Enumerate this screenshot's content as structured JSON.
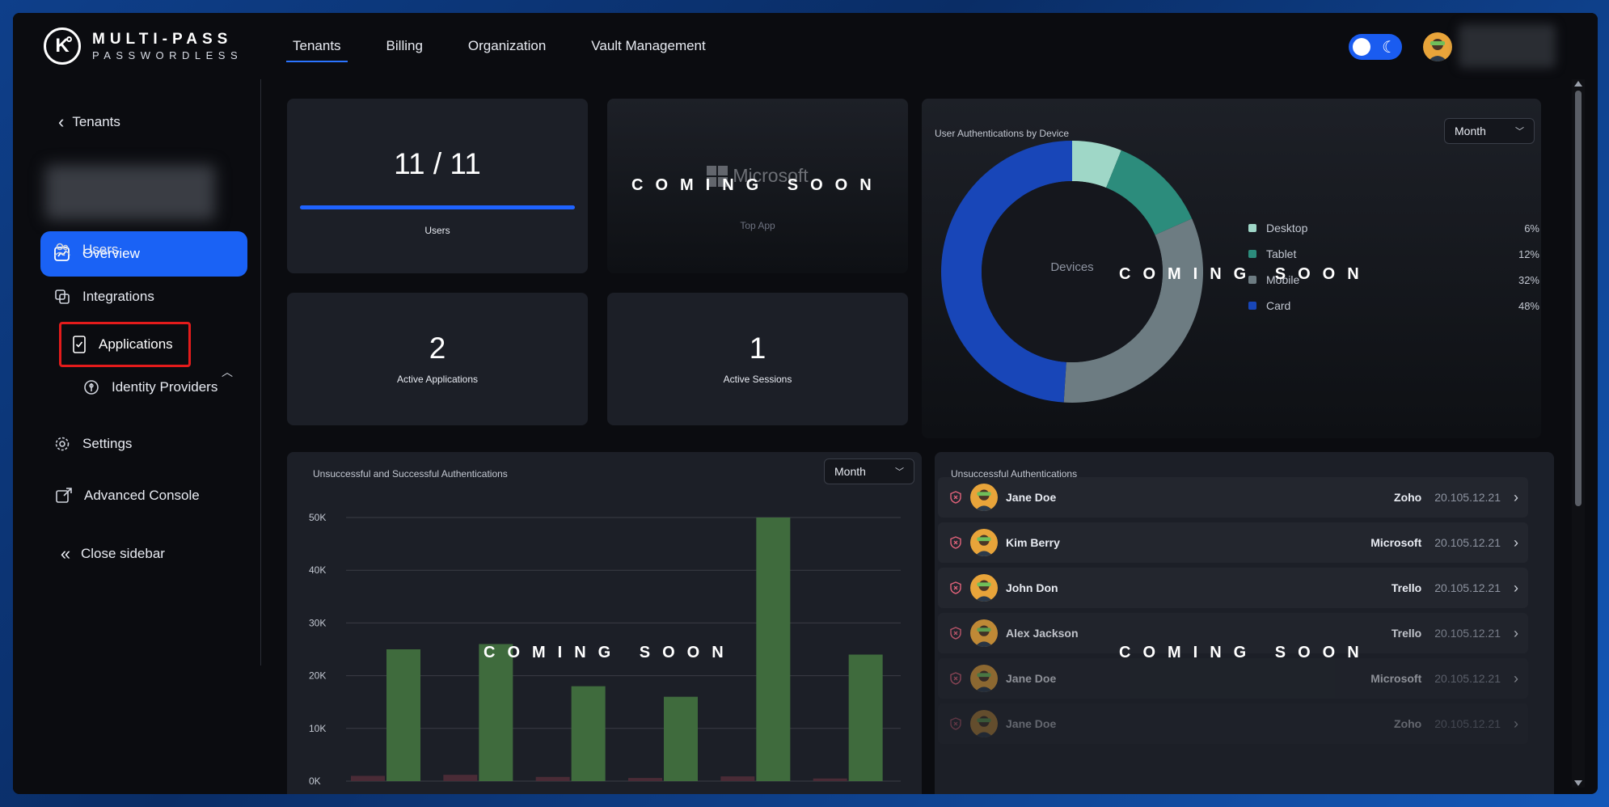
{
  "header": {
    "logo": {
      "line1": "MULTI-PASS",
      "line2": "PASSWORDLESS",
      "mark": "K"
    },
    "nav": [
      {
        "label": "Tenants",
        "active": true
      },
      {
        "label": "Billing",
        "active": false
      },
      {
        "label": "Organization",
        "active": false
      },
      {
        "label": "Vault Management",
        "active": false
      }
    ],
    "theme_toggle": {
      "icon": "moon-icon",
      "state": "dark"
    }
  },
  "sidebar": {
    "back_label": "Tenants",
    "items": {
      "overview": "Overview",
      "users": "Users",
      "integrations": "Integrations",
      "applications": "Applications",
      "identity_providers": "Identity Providers",
      "settings": "Settings",
      "advanced_console": "Advanced Console",
      "close_sidebar": "Close sidebar"
    }
  },
  "stats": {
    "users": {
      "value": "11 / 11",
      "label": "Users",
      "progress": 1.0
    },
    "top_app": {
      "value": "Microsoft",
      "label": "Top App",
      "overlay": "COMING SOON"
    },
    "active_apps": {
      "value": "2",
      "label": "Active Applications"
    },
    "active_sessions": {
      "value": "1",
      "label": "Active Sessions"
    }
  },
  "devices": {
    "title": "User Authentications by Device",
    "period": "Month",
    "center_label": "Devices",
    "overlay": "COMING SOON",
    "legend": [
      {
        "name": "Desktop",
        "pct": "6%",
        "color": "#9fd7c7"
      },
      {
        "name": "Tablet",
        "pct": "12%",
        "color": "#2c8c7c"
      },
      {
        "name": "Mobile",
        "pct": "32%",
        "color": "#6d7c82"
      },
      {
        "name": "Card",
        "pct": "48%",
        "color": "#1846b8"
      }
    ]
  },
  "auth_chart": {
    "title": "Unsuccessful and Successful Authentications",
    "period": "Month",
    "overlay": "COMING SOON"
  },
  "chart_data": {
    "type": "bar",
    "ytick_labels": [
      "50K",
      "40K",
      "30K",
      "20K",
      "10K",
      "0K"
    ],
    "ylim": [
      0,
      50000
    ],
    "series": [
      {
        "values": [
          1000,
          1200,
          800,
          600,
          900,
          500
        ],
        "color": "#4a2b36"
      },
      {
        "values": [
          25000,
          26000,
          18000,
          16000,
          50000,
          24000
        ],
        "color": "#3f6b3d"
      }
    ]
  },
  "unsuccessful": {
    "title": "Unsuccessful Authentications",
    "overlay": "COMING SOON",
    "rows": [
      {
        "name": "Jane Doe",
        "app": "Zoho",
        "ip": "20.105.12.21"
      },
      {
        "name": "Kim Berry",
        "app": "Microsoft",
        "ip": "20.105.12.21"
      },
      {
        "name": "John Don",
        "app": "Trello",
        "ip": "20.105.12.21"
      },
      {
        "name": "Alex Jackson",
        "app": "Trello",
        "ip": "20.105.12.21"
      },
      {
        "name": "Jane Doe",
        "app": "Microsoft",
        "ip": "20.105.12.21"
      },
      {
        "name": "Jane Doe",
        "app": "Zoho",
        "ip": "20.105.12.21"
      }
    ]
  }
}
